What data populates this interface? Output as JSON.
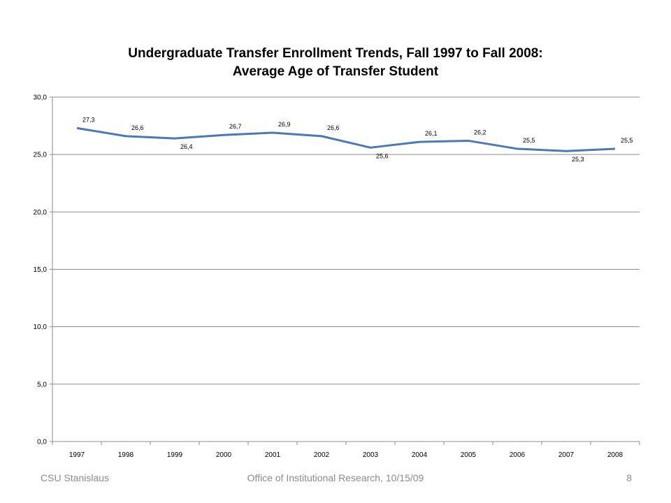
{
  "chart_data": {
    "type": "line",
    "title": "Undergraduate Transfer Enrollment Trends, Fall 1997 to Fall 2008:",
    "subtitle": "Average Age of Transfer Student",
    "categories": [
      "1997",
      "1998",
      "1999",
      "2000",
      "2001",
      "2002",
      "2003",
      "2004",
      "2005",
      "2006",
      "2007",
      "2008"
    ],
    "series": [
      {
        "values": [
          27.3,
          26.6,
          26.4,
          26.7,
          26.9,
          26.6,
          25.6,
          26.1,
          26.2,
          25.5,
          25.3,
          25.5
        ],
        "labels": [
          "27,3",
          "26,6",
          "26,4",
          "26,7",
          "26,9",
          "26,6",
          "25,6",
          "26,1",
          "26,2",
          "25,5",
          "25,3",
          "25,5"
        ],
        "color": "#4a7ab5"
      }
    ],
    "ylim": [
      0,
      30
    ],
    "yticks": [
      "0,0",
      "5,0",
      "10,0",
      "15,0",
      "20,0",
      "25,0",
      "30,0"
    ],
    "grid": true,
    "legend": "none"
  },
  "footer": {
    "left": "CSU Stanislaus",
    "center": "Office of Institutional  Research, 10/15/09",
    "right": "8"
  }
}
